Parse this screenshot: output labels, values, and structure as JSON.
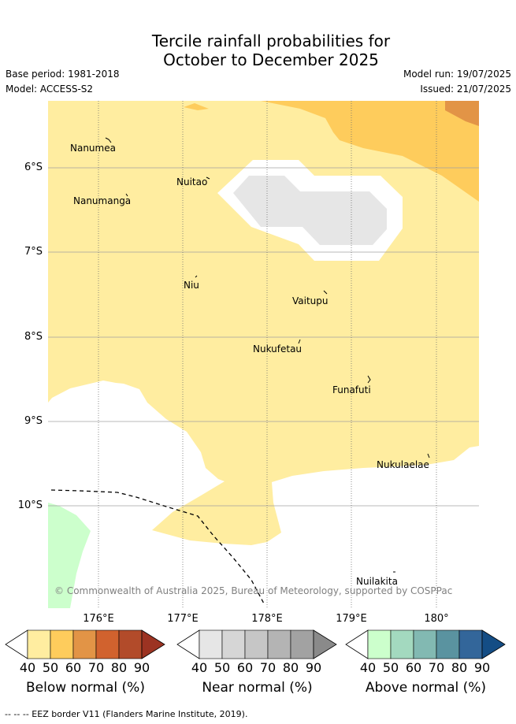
{
  "header": {
    "title_line1": "Tercile rainfall probabilities for",
    "title_line2": "October to December 2025",
    "base_period": "Base period: 1981-2018",
    "model": "Model: ACCESS-S2",
    "model_run": "Model run: 19/07/2025",
    "issued": "Issued: 21/07/2025"
  },
  "map": {
    "lat_labels": [
      "6°S",
      "7°S",
      "8°S",
      "9°S",
      "10°S"
    ],
    "lon_labels": [
      "176°E",
      "177°E",
      "178°E",
      "179°E",
      "180°"
    ],
    "places": {
      "nanumea": "Nanumea",
      "nuitao": "Nuitao",
      "nanumanga": "Nanumanga",
      "niu": "Niu",
      "vaitupu": "Vaitupu",
      "nukufetau": "Nukufetau",
      "funafuti": "Funafuti",
      "nukulaelae": "Nukulaelae",
      "nuilakita": "Nuilakita"
    },
    "copyright": "© Commonwealth of Australia 2025, Bureau of Meteorology, supported by COSPPac",
    "colors": {
      "below_40": "#ffeda0",
      "below_50": "#fecc5c",
      "below_60": "#e29446",
      "near_40": "#e6e6e6",
      "above_40": "#ccffcc"
    }
  },
  "colorbars": {
    "ticks": [
      "40",
      "50",
      "60",
      "70",
      "80",
      "90"
    ],
    "below": {
      "title": "Below normal (%)",
      "colors": [
        "#ffeda0",
        "#fecc5c",
        "#e29446",
        "#d1622e",
        "#b24b2a",
        "#9c3322"
      ]
    },
    "near": {
      "title": "Near normal (%)",
      "colors": [
        "#e6e6e6",
        "#d6d6d6",
        "#c6c6c6",
        "#b4b4b4",
        "#a2a2a2",
        "#8a8a8a"
      ]
    },
    "above": {
      "title": "Above normal (%)",
      "colors": [
        "#ccffcc",
        "#a3d9bf",
        "#82b9b2",
        "#5a93a0",
        "#33669a",
        "#144d85"
      ]
    }
  },
  "footer": {
    "legend": "--  --  -- EEZ border V11 (Flanders Marine Institute, 2019)."
  }
}
